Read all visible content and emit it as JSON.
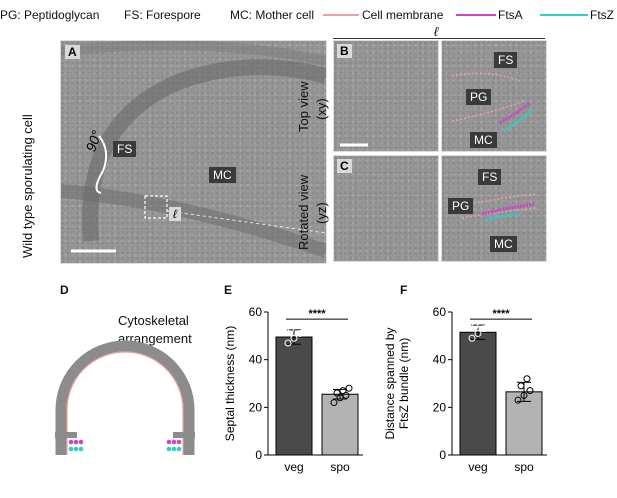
{
  "legend": {
    "pg": "PG: Peptidoglycan",
    "fs": "FS: Forespore",
    "mc": "MC: Mother cell",
    "cell_membrane": "Cell membrane",
    "ftsa": "FtsA",
    "ftsz": "FtsZ",
    "colors": {
      "cell_membrane": "#f0a0a0",
      "ftsa": "#cc44cc",
      "ftsz": "#33cccc"
    }
  },
  "panelA": {
    "letter": "A",
    "side_label": "Wild type sporulating cell",
    "angle": "90°",
    "fs": "FS",
    "mc": "MC",
    "ell": "ℓ"
  },
  "panelB": {
    "letter": "B",
    "side_label_1": "Top view",
    "side_label_2": "(xy)",
    "ell": "ℓ",
    "fs": "FS",
    "pg": "PG",
    "mc": "MC"
  },
  "panelC": {
    "letter": "C",
    "side_label_1": "Rotated view",
    "side_label_2": "(yz)",
    "fs": "FS",
    "pg": "PG",
    "mc": "MC"
  },
  "panelD": {
    "letter": "D",
    "title_1": "Cytoskeletal",
    "title_2": "arrangement"
  },
  "panelE": {
    "letter": "E"
  },
  "panelF": {
    "letter": "F"
  },
  "chart_data": [
    {
      "type": "bar",
      "panel": "E",
      "categories": [
        "veg",
        "spo"
      ],
      "values": [
        49.5,
        25.5
      ],
      "errors": [
        3,
        2
      ],
      "points": [
        [
          47,
          49,
          51,
          53
        ],
        [
          22,
          24,
          25,
          26,
          27,
          28
        ]
      ],
      "ylabel": "Septal thickness (nm)",
      "ylim": [
        0,
        60
      ],
      "yticks": [
        0,
        20,
        40,
        60
      ],
      "significance": "****",
      "bar_colors": [
        "#4a4a4a",
        "#b3b3b3"
      ]
    },
    {
      "type": "bar",
      "panel": "F",
      "categories": [
        "veg",
        "spo"
      ],
      "values": [
        51.5,
        26.5
      ],
      "errors": [
        3,
        4
      ],
      "points": [
        [
          49,
          51,
          53,
          54
        ],
        [
          23,
          25,
          27,
          29,
          32
        ]
      ],
      "ylabel_1": "Distance spanned by",
      "ylabel_2": "FtsZ bundle (nm)",
      "ylim": [
        0,
        60
      ],
      "yticks": [
        0,
        20,
        40,
        60
      ],
      "significance": "****",
      "bar_colors": [
        "#4a4a4a",
        "#b3b3b3"
      ]
    }
  ]
}
